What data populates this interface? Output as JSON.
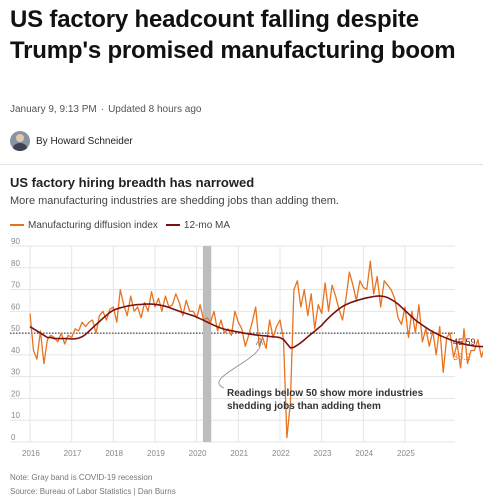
{
  "article": {
    "headline": "US factory headcount falling despite Trump's promised manufacturing boom",
    "date": "January 9, 9:13 PM",
    "separator": "·",
    "updated": "Updated 8 hours ago",
    "byline": "By Howard Schneider"
  },
  "chart": {
    "title": "US factory hiring breadth has narrowed",
    "subtitle": "More manufacturing industries are shedding jobs than adding them.",
    "legend": [
      "Manufacturing diffusion index",
      "12-mo MA"
    ],
    "annotation_line1": "Readings below 50 show more industries",
    "annotation_line2": "shedding jobs than adding them",
    "end_label_ma": "45.59",
    "end_label_index": "38.2",
    "note": "Note: Gray band is COVID-19 recession",
    "source": "Source: Bureau of Labor Statistics | Dan Burns"
  },
  "colors": {
    "index": "#e8731e",
    "ma": "#7a1010",
    "recession": "#bdbdbd",
    "grid": "#e5e5e5"
  },
  "chart_data": {
    "type": "line",
    "title": "US factory hiring breadth has narrowed",
    "subtitle": "More manufacturing industries are shedding jobs than adding them.",
    "xlabel": "",
    "ylabel": "",
    "x_ticks": [
      "2016",
      "2017",
      "2018",
      "2019",
      "2020",
      "2021",
      "2022",
      "2023",
      "2024",
      "2025"
    ],
    "y_ticks": [
      0,
      10,
      20,
      30,
      40,
      50,
      60,
      70,
      80,
      90
    ],
    "xlim": [
      2016.0,
      2026.2
    ],
    "ylim": [
      0,
      90
    ],
    "grid": true,
    "reference_line": 50,
    "recession_band": [
      2020.15,
      2020.35
    ],
    "legend_position": "top-left",
    "series": [
      {
        "name": "Manufacturing diffusion index",
        "start": 2016.0,
        "step_months": 1,
        "values": [
          59,
          42,
          38,
          51,
          36,
          47,
          49,
          48,
          46,
          50,
          45,
          49,
          48,
          52,
          51,
          55,
          53,
          55,
          56,
          50,
          58,
          60,
          56,
          61,
          62,
          55,
          70,
          63,
          58,
          67,
          60,
          62,
          57,
          64,
          60,
          69,
          62,
          66,
          60,
          67,
          62,
          63,
          68,
          64,
          58,
          65,
          60,
          60,
          57,
          63,
          56,
          57,
          55,
          60,
          51,
          56,
          50,
          52,
          49,
          60,
          55,
          52,
          44,
          49,
          55,
          62,
          44,
          48,
          43,
          56,
          48,
          53,
          56,
          47,
          2,
          18,
          70,
          74,
          62,
          70,
          58,
          68,
          52,
          63,
          59,
          73,
          60,
          72,
          67,
          61,
          56,
          66,
          78,
          72,
          65,
          74,
          71,
          70,
          83,
          68,
          76,
          62,
          74,
          72,
          70,
          66,
          57,
          54,
          62,
          48,
          60,
          50,
          63,
          46,
          52,
          44,
          51,
          40,
          53,
          32,
          48,
          50,
          39,
          45,
          34,
          52,
          36,
          42,
          42,
          47,
          39,
          44,
          55,
          38,
          48,
          48,
          51,
          60,
          45,
          41,
          47,
          41,
          45,
          45,
          50,
          48,
          44,
          42,
          40,
          38.2
        ]
      },
      {
        "name": "12-mo MA",
        "start": 2016.0,
        "step_months": 1,
        "values": [
          53,
          52,
          51,
          50,
          49,
          48,
          48,
          47.5,
          47.5,
          47.5,
          47.5,
          47.5,
          47.3,
          47.4,
          47.7,
          48.3,
          49.4,
          50.9,
          52.4,
          53.9,
          55.3,
          56.8,
          58.2,
          59.5,
          60.5,
          61.1,
          61.6,
          62.0,
          62.4,
          62.7,
          62.9,
          63.1,
          63.2,
          63.3,
          63.3,
          63.3,
          63.2,
          63.0,
          62.7,
          62.3,
          61.8,
          61.2,
          60.6,
          60.0,
          59.5,
          59.0,
          58.5,
          58.0,
          57.3,
          56.6,
          55.9,
          55.1,
          54.3,
          53.6,
          52.9,
          52.3,
          51.8,
          51.4,
          51.1,
          50.8,
          50.5,
          50.2,
          49.9,
          49.6,
          49.4,
          49.2,
          49.0,
          48.8,
          48.7,
          48.5,
          48.3,
          48.2,
          47.9,
          47.1,
          45.2,
          43.2,
          43.5,
          44.5,
          45.6,
          46.9,
          48.3,
          49.6,
          50.9,
          52.2,
          53.6,
          55.4,
          57.0,
          58.5,
          59.9,
          61.1,
          62.2,
          63.1,
          63.8,
          64.4,
          64.9,
          65.4,
          65.8,
          66.2,
          66.5,
          66.8,
          67.0,
          67.0,
          66.8,
          66.3,
          65.5,
          64.5,
          63.3,
          61.9,
          60.4,
          58.9,
          57.4,
          56.0,
          54.8,
          53.7,
          52.6,
          51.5,
          50.6,
          49.8,
          49.0,
          48.3,
          47.6,
          47.0,
          46.4,
          45.9,
          45.4,
          45.0,
          44.6,
          44.3,
          44.0,
          43.9,
          43.8,
          43.8,
          43.9,
          44.2,
          44.5,
          44.9,
          45.2,
          45.5,
          45.7,
          45.8,
          45.8,
          45.8,
          45.9,
          46.1,
          46.3,
          46.2,
          45.9,
          45.6,
          45.59
        ]
      }
    ],
    "end_labels": {
      "ma": 45.59,
      "index": 38.2
    }
  }
}
